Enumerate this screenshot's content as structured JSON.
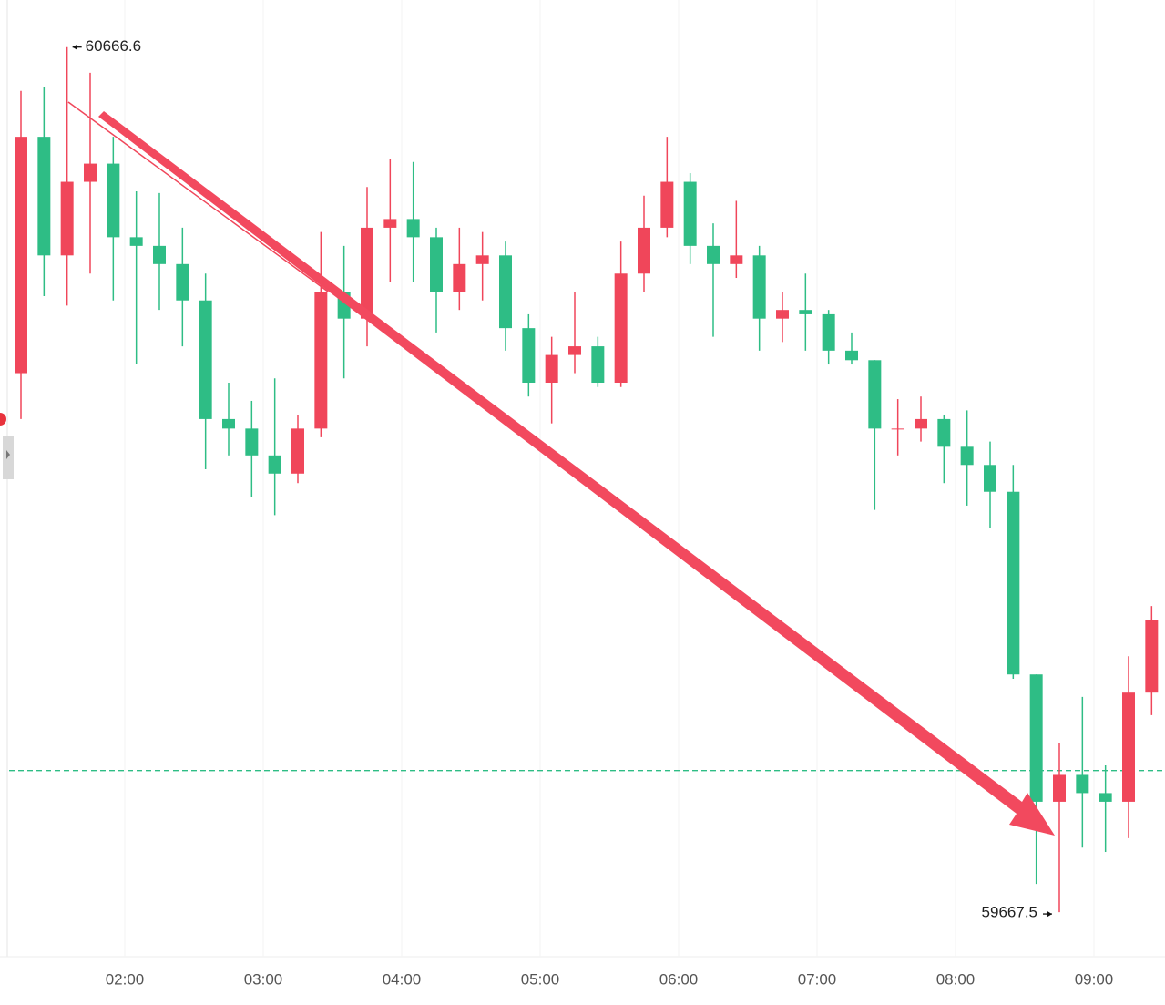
{
  "chart_data": {
    "type": "candlestick",
    "x": [
      "01:10",
      "01:20",
      "01:30",
      "01:40",
      "01:50",
      "02:00",
      "02:10",
      "02:20",
      "02:30",
      "02:40",
      "02:50",
      "03:00",
      "03:10",
      "03:20",
      "03:30",
      "03:40",
      "03:50",
      "04:00",
      "04:10",
      "04:20",
      "04:30",
      "04:40",
      "04:50",
      "05:00",
      "05:10",
      "05:20",
      "05:30",
      "05:40",
      "05:50",
      "06:00",
      "06:10",
      "06:20",
      "06:30",
      "06:40",
      "06:50",
      "07:00",
      "07:10",
      "07:20",
      "07:30",
      "07:40",
      "07:50",
      "08:00",
      "08:10",
      "08:20",
      "08:30",
      "08:40",
      "08:50",
      "09:00",
      "09:10",
      "09:20"
    ],
    "open": [
      60290,
      60563,
      60426,
      60511,
      60532,
      60447,
      60437,
      60416,
      60374,
      60237,
      60226,
      60195,
      60174,
      60226,
      60384,
      60353,
      60458,
      60468,
      60447,
      60384,
      60416,
      60426,
      60342,
      60279,
      60311,
      60321,
      60279,
      60405,
      60458,
      60511,
      60437,
      60416,
      60426,
      60353,
      60363,
      60358,
      60316,
      60305,
      60226,
      60226,
      60237,
      60205,
      60184,
      60153,
      59942,
      59795,
      59826,
      59805,
      59795,
      59921
    ],
    "high": [
      60616,
      60621,
      60666.6,
      60637,
      60563,
      60500,
      60498,
      60458,
      60405,
      60279,
      60258,
      60284,
      60242,
      60453,
      60437,
      60505,
      60537,
      60534,
      60458,
      60458,
      60453,
      60442,
      60358,
      60332,
      60384,
      60332,
      60442,
      60495,
      60563,
      60521,
      60463,
      60489,
      60437,
      60384,
      60405,
      60363,
      60337,
      60305,
      60260,
      60263,
      60242,
      60247,
      60211,
      60184,
      59942,
      59863,
      59916,
      59837,
      59963,
      60021
    ],
    "low": [
      60237,
      60379,
      60368,
      60405,
      60374,
      60300,
      60363,
      60321,
      60179,
      60195,
      60147,
      60126,
      60163,
      60216,
      60284,
      60321,
      60395,
      60395,
      60337,
      60363,
      60374,
      60316,
      60263,
      60232,
      60290,
      60274,
      60274,
      60384,
      60447,
      60416,
      60332,
      60400,
      60316,
      60326,
      60316,
      60300,
      60300,
      60132,
      60195,
      60211,
      60163,
      60137,
      60111,
      59937,
      59700,
      59667.5,
      59742,
      59737,
      59753,
      59895
    ],
    "close": [
      60563,
      60426,
      60511,
      60532,
      60447,
      60437,
      60416,
      60374,
      60237,
      60226,
      60195,
      60174,
      60226,
      60384,
      60353,
      60458,
      60468,
      60447,
      60384,
      60416,
      60426,
      60342,
      60279,
      60311,
      60321,
      60279,
      60405,
      60458,
      60511,
      60437,
      60416,
      60426,
      60353,
      60363,
      60358,
      60316,
      60305,
      60226,
      60226,
      60237,
      60205,
      60184,
      60153,
      59942,
      59795,
      59826,
      59805,
      59795,
      59921,
      60005
    ],
    "up_color": "#f0465a",
    "down_color": "#2ebd85",
    "xticks": [
      "02:00",
      "03:00",
      "04:00",
      "05:00",
      "06:00",
      "07:00",
      "08:00",
      "09:00"
    ],
    "ylim": [
      59616,
      60721
    ],
    "price_line": 59831,
    "price_line_color": "#2ebd85",
    "grid": true
  }
}
